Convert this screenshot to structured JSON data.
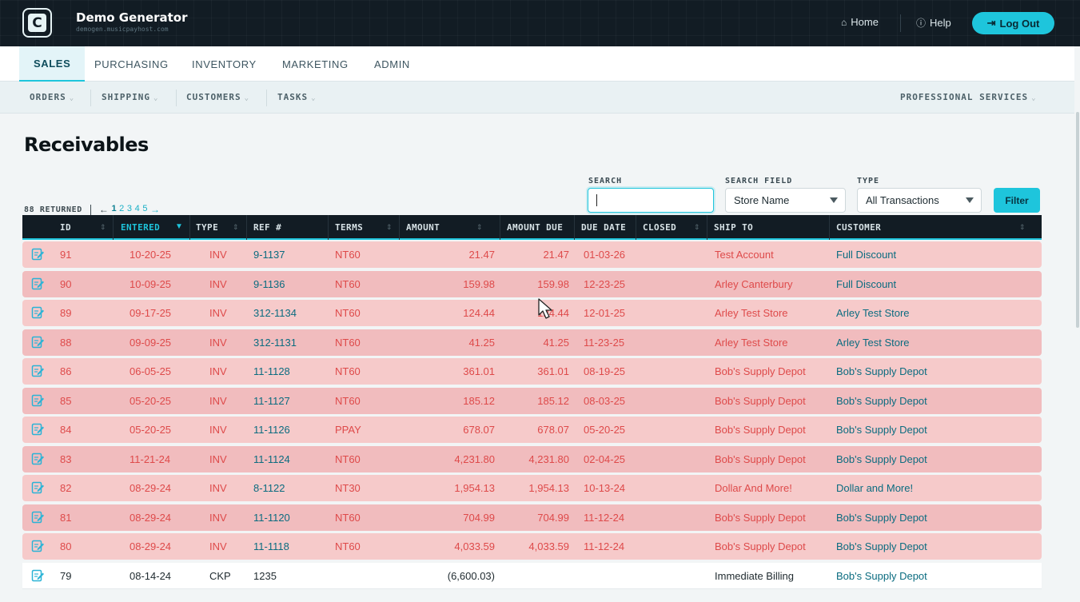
{
  "app": {
    "title": "Demo Generator",
    "subtitle": "demogen.musicpayhost.com"
  },
  "top_links": {
    "home": "Home",
    "help": "Help",
    "logout": "Log Out"
  },
  "main_tabs": [
    "SALES",
    "PURCHASING",
    "INVENTORY",
    "MARKETING",
    "ADMIN"
  ],
  "active_tab": "SALES",
  "sub_nav": [
    "ORDERS",
    "SHIPPING",
    "CUSTOMERS",
    "TASKS"
  ],
  "sub_nav_right": "PROFESSIONAL SERVICES",
  "page_title": "Receivables",
  "results": {
    "returned": "88 RETURNED",
    "pages": [
      "1",
      "2",
      "3",
      "4",
      "5"
    ],
    "current_page": "1",
    "prev": "←",
    "next": "→"
  },
  "filters": {
    "search_label": "SEARCH",
    "search_value": "",
    "search_field_label": "SEARCH FIELD",
    "search_field_value": "Store Name",
    "type_label": "TYPE",
    "type_value": "All Transactions",
    "filter_button": "Filter"
  },
  "columns": [
    "ID",
    "ENTERED",
    "TYPE",
    "REF #",
    "TERMS",
    "AMOUNT",
    "AMOUNT DUE",
    "DUE DATE",
    "CLOSED",
    "SHIP TO",
    "CUSTOMER"
  ],
  "sorted_column": "ENTERED",
  "rows": [
    {
      "id": "91",
      "entered": "10-20-25",
      "type": "INV",
      "ref": "9-1137",
      "terms": "NT60",
      "amount": "21.47",
      "amount_due": "21.47",
      "due_date": "01-03-26",
      "closed": "",
      "ship_to": "Test Account",
      "customer": "Full Discount",
      "status": "due"
    },
    {
      "id": "90",
      "entered": "10-09-25",
      "type": "INV",
      "ref": "9-1136",
      "terms": "NT60",
      "amount": "159.98",
      "amount_due": "159.98",
      "due_date": "12-23-25",
      "closed": "",
      "ship_to": "Arley Canterbury",
      "customer": "Full Discount",
      "status": "due"
    },
    {
      "id": "89",
      "entered": "09-17-25",
      "type": "INV",
      "ref": "312-1134",
      "terms": "NT60",
      "amount": "124.44",
      "amount_due": "124.44",
      "due_date": "12-01-25",
      "closed": "",
      "ship_to": "Arley Test Store",
      "customer": "Arley Test Store",
      "status": "due"
    },
    {
      "id": "88",
      "entered": "09-09-25",
      "type": "INV",
      "ref": "312-1131",
      "terms": "NT60",
      "amount": "41.25",
      "amount_due": "41.25",
      "due_date": "11-23-25",
      "closed": "",
      "ship_to": "Arley Test Store",
      "customer": "Arley Test Store",
      "status": "due"
    },
    {
      "id": "86",
      "entered": "06-05-25",
      "type": "INV",
      "ref": "11-1128",
      "terms": "NT60",
      "amount": "361.01",
      "amount_due": "361.01",
      "due_date": "08-19-25",
      "closed": "",
      "ship_to": "Bob's Supply Depot",
      "customer": "Bob's Supply Depot",
      "status": "due"
    },
    {
      "id": "85",
      "entered": "05-20-25",
      "type": "INV",
      "ref": "11-1127",
      "terms": "NT60",
      "amount": "185.12",
      "amount_due": "185.12",
      "due_date": "08-03-25",
      "closed": "",
      "ship_to": "Bob's Supply Depot",
      "customer": "Bob's Supply Depot",
      "status": "due"
    },
    {
      "id": "84",
      "entered": "05-20-25",
      "type": "INV",
      "ref": "11-1126",
      "terms": "PPAY",
      "amount": "678.07",
      "amount_due": "678.07",
      "due_date": "05-20-25",
      "closed": "",
      "ship_to": "Bob's Supply Depot",
      "customer": "Bob's Supply Depot",
      "status": "due"
    },
    {
      "id": "83",
      "entered": "11-21-24",
      "type": "INV",
      "ref": "11-1124",
      "terms": "NT60",
      "amount": "4,231.80",
      "amount_due": "4,231.80",
      "due_date": "02-04-25",
      "closed": "",
      "ship_to": "Bob's Supply Depot",
      "customer": "Bob's Supply Depot",
      "status": "due"
    },
    {
      "id": "82",
      "entered": "08-29-24",
      "type": "INV",
      "ref": "8-1122",
      "terms": "NT30",
      "amount": "1,954.13",
      "amount_due": "1,954.13",
      "due_date": "10-13-24",
      "closed": "",
      "ship_to": "Dollar And More!",
      "customer": "Dollar and More!",
      "status": "due"
    },
    {
      "id": "81",
      "entered": "08-29-24",
      "type": "INV",
      "ref": "11-1120",
      "terms": "NT60",
      "amount": "704.99",
      "amount_due": "704.99",
      "due_date": "11-12-24",
      "closed": "",
      "ship_to": "Bob's Supply Depot",
      "customer": "Bob's Supply Depot",
      "status": "due"
    },
    {
      "id": "80",
      "entered": "08-29-24",
      "type": "INV",
      "ref": "11-1118",
      "terms": "NT60",
      "amount": "4,033.59",
      "amount_due": "4,033.59",
      "due_date": "11-12-24",
      "closed": "",
      "ship_to": "Bob's Supply Depot",
      "customer": "Bob's Supply Depot",
      "status": "due"
    },
    {
      "id": "79",
      "entered": "08-14-24",
      "type": "CKP",
      "ref": "1235",
      "terms": "",
      "amount": "(6,600.03)",
      "amount_due": "",
      "due_date": "",
      "closed": "",
      "ship_to": "Immediate Billing",
      "customer": "Bob's Supply Depot",
      "status": "clear"
    }
  ],
  "colors": {
    "accent": "#1ec5dc",
    "header_bg": "#121c24",
    "overdue_row": "#f6caca",
    "overdue_text": "#de4a4a",
    "link_text": "#0b6c80"
  },
  "icons": {
    "home": "home-icon",
    "help": "help-icon",
    "logout": "logout-icon",
    "edit": "edit-icon",
    "sort": "sort-icon"
  }
}
